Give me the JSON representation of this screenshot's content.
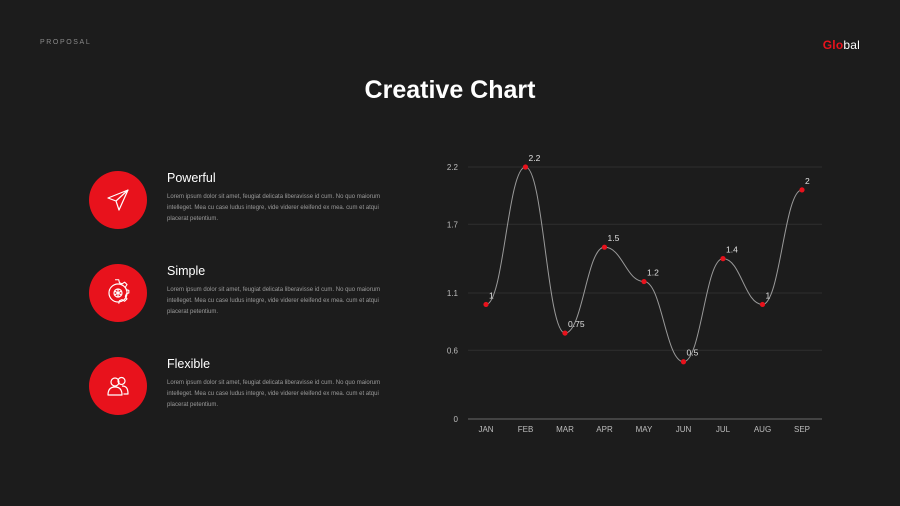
{
  "header": {
    "label": "PROPOSAL",
    "logo_part1": "Glo",
    "logo_part2": "bal"
  },
  "title": "Creative Chart",
  "features": [
    {
      "title": "Powerful",
      "icon": "paper-plane-icon",
      "description": "Lorem ipsum dolor sit amet, feugiat delicata liberavisse id cum. No quo maiorum intelleget. Mea cu case ludus integre, vide viderer eleifend ex mea. cum et atqui placerat petentium."
    },
    {
      "title": "Simple",
      "icon": "gear-icon",
      "description": "Lorem ipsum dolor sit amet, feugiat delicata liberavisse id cum. No quo maiorum intelleget. Mea cu case ludus integre, vide viderer eleifend ex mea. cum et atqui placerat petentium."
    },
    {
      "title": "Flexible",
      "icon": "users-icon",
      "description": "Lorem ipsum dolor sit amet, feugiat delicata liberavisse id cum. No quo maiorum intelleget. Mea cu case ludus integre, vide viderer eleifend ex mea. cum et atqui placerat petentium."
    }
  ],
  "colors": {
    "accent": "#e8121c",
    "background": "#1c1c1c",
    "line": "#9a9a9a"
  },
  "chart_data": {
    "type": "line",
    "categories": [
      "JAN",
      "FEB",
      "MAR",
      "APR",
      "MAY",
      "JUN",
      "JUL",
      "AUG",
      "SEP"
    ],
    "series": [
      {
        "values": [
          1,
          2.2,
          0.75,
          1.5,
          1.2,
          0.5,
          1.4,
          1,
          2
        ]
      }
    ],
    "data_labels": [
      "1",
      "2.2",
      "0.75",
      "1.5",
      "1.2",
      "0.5",
      "1.4",
      "1",
      "2"
    ],
    "yticks": [
      0,
      0.6,
      1.1,
      1.7,
      2.2
    ],
    "ytick_labels": [
      "0",
      "0.6",
      "1.1",
      "1.7",
      "2.2"
    ],
    "ylim": [
      0,
      2.2
    ],
    "grid": true,
    "smooth": true
  }
}
